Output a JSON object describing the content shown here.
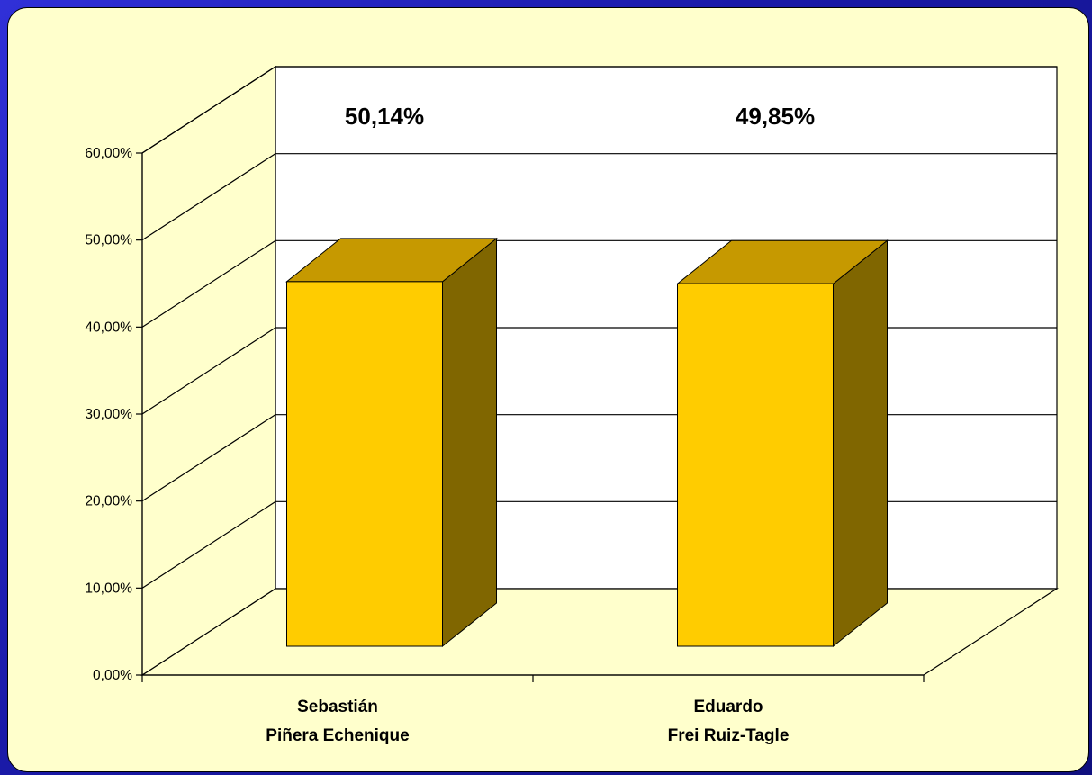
{
  "chart_data": {
    "type": "bar",
    "title": "",
    "xlabel": "",
    "ylabel": "",
    "categories": [
      [
        "Sebastián",
        "Piñera Echenique"
      ],
      [
        "Eduardo",
        "Frei Ruiz-Tagle"
      ]
    ],
    "values": [
      50.14,
      49.85
    ],
    "data_labels": [
      "50,14%",
      "49,85%"
    ],
    "ylim": [
      0,
      60
    ],
    "y_ticks": [
      0,
      10,
      20,
      30,
      40,
      50,
      60
    ],
    "y_tick_labels": [
      "0,00%",
      "10,00%",
      "20,00%",
      "30,00%",
      "40,00%",
      "50,00%",
      "60,00%"
    ],
    "grid": true,
    "three_d": true,
    "colors": {
      "bar_front": "#ffcc00",
      "bar_top": "#c69900",
      "bar_side": "#806600",
      "background": "#ffffcc",
      "plot_wall": "#ffffff",
      "frame": "#1c1cb4"
    }
  }
}
